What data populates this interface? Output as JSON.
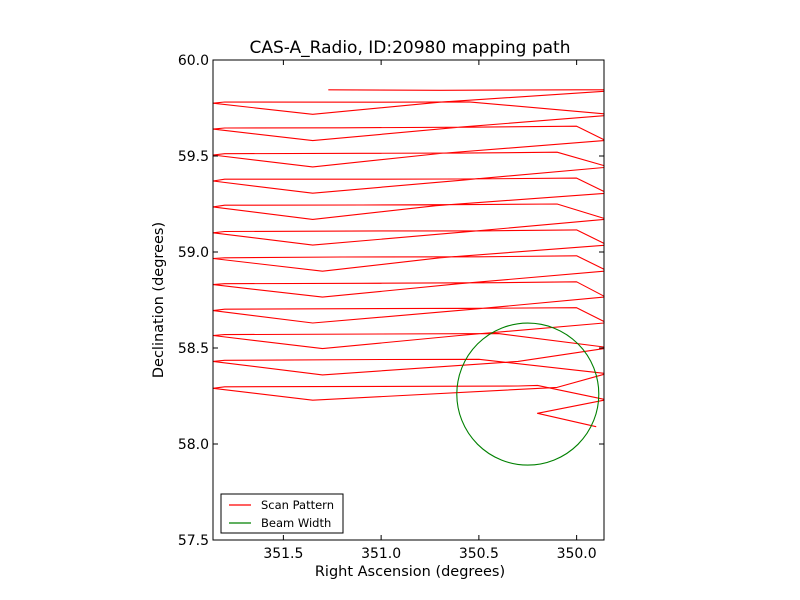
{
  "chart_data": {
    "type": "line",
    "title": "CAS-A_Radio, ID:20980 mapping path",
    "xlabel": "Right Ascension (degrees)",
    "ylabel": "Declination (degrees)",
    "xlim": [
      351.86,
      349.86
    ],
    "ylim": [
      57.5,
      60.0
    ],
    "x_ticks": [
      351.5,
      351.0,
      350.5,
      350.0
    ],
    "x_tick_labels": [
      "351.5",
      "351.0",
      "350.5",
      "350.0"
    ],
    "y_ticks": [
      57.5,
      58.0,
      58.5,
      59.0,
      59.5,
      60.0
    ],
    "y_tick_labels": [
      "57.5",
      "58.0",
      "58.5",
      "59.0",
      "59.5",
      "60.0"
    ],
    "grid": false,
    "legend_position": "lower-left",
    "series": [
      {
        "name": "Scan Pattern",
        "color": "#ff0000",
        "x": [
          351.27,
          350.7,
          350.4,
          350.0,
          349.86,
          349.86,
          350.7,
          351.35,
          351.86,
          351.8,
          351.0,
          350.55,
          349.86,
          349.86,
          350.6,
          351.35,
          351.86,
          351.8,
          351.2,
          350.55,
          350.0,
          349.86,
          349.86,
          350.7,
          351.35,
          351.86,
          351.8,
          351.1,
          350.6,
          350.1,
          349.86,
          349.86,
          350.6,
          351.35,
          351.86,
          351.8,
          351.0,
          350.6,
          350.0,
          349.86,
          349.86,
          350.72,
          351.35,
          351.86,
          351.8,
          351.1,
          350.55,
          350.1,
          349.86,
          349.86,
          350.55,
          351.35,
          351.86,
          351.8,
          351.0,
          350.5,
          350.0,
          349.86,
          349.86,
          350.7,
          351.3,
          351.86,
          351.8,
          351.2,
          350.5,
          350.0,
          349.86,
          349.86,
          350.6,
          351.3,
          351.86,
          351.8,
          351.1,
          350.4,
          350.0,
          349.86,
          349.86,
          350.55,
          351.35,
          351.86,
          351.8,
          351.0,
          350.5,
          350.0,
          349.86,
          349.86,
          350.6,
          351.3,
          351.86,
          351.8,
          351.0,
          350.4,
          349.86,
          349.86,
          350.3,
          351.3,
          351.86,
          351.8,
          351.0,
          350.5,
          349.86,
          349.86,
          350.1,
          351.35,
          351.86,
          351.8,
          351.0,
          350.3,
          350.2,
          349.86,
          349.86,
          350.2,
          349.9
        ],
        "y": [
          59.845,
          59.842,
          59.843,
          59.845,
          59.845,
          59.837,
          59.78,
          59.717,
          59.775,
          59.781,
          59.78,
          59.782,
          59.72,
          59.71,
          59.65,
          59.58,
          59.64,
          59.646,
          59.647,
          59.65,
          59.655,
          59.585,
          59.58,
          59.513,
          59.443,
          59.505,
          59.512,
          59.514,
          59.515,
          59.52,
          59.45,
          59.44,
          59.373,
          59.306,
          59.37,
          59.379,
          59.379,
          59.38,
          59.385,
          59.315,
          59.305,
          59.241,
          59.17,
          59.235,
          59.244,
          59.245,
          59.247,
          59.25,
          59.175,
          59.17,
          59.106,
          59.036,
          59.1,
          59.107,
          59.11,
          59.11,
          59.115,
          59.045,
          59.035,
          58.97,
          58.9,
          58.966,
          58.97,
          58.974,
          58.975,
          58.98,
          58.91,
          58.9,
          58.835,
          58.765,
          58.83,
          58.835,
          58.837,
          58.84,
          58.845,
          58.77,
          58.765,
          58.7,
          58.63,
          58.695,
          58.702,
          58.705,
          58.707,
          58.71,
          58.638,
          58.63,
          58.565,
          58.497,
          58.565,
          58.57,
          58.573,
          58.575,
          58.505,
          58.497,
          58.43,
          58.36,
          58.43,
          58.436,
          58.44,
          58.441,
          58.368,
          58.363,
          58.295,
          58.228,
          58.29,
          58.298,
          58.3,
          58.302,
          58.305,
          58.233,
          58.228,
          58.16,
          58.09
        ]
      },
      {
        "name": "Beam Width",
        "color": "#008000",
        "circle": {
          "center_x": 350.25,
          "center_y": 58.26,
          "radius_deg": 0.37
        }
      }
    ]
  }
}
